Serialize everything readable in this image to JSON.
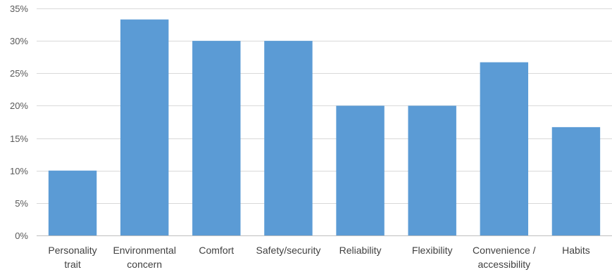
{
  "chart_data": {
    "type": "bar",
    "categories": [
      [
        "Personality",
        "trait"
      ],
      [
        "Environmental",
        "concern"
      ],
      [
        "Comfort"
      ],
      [
        "Safety/security"
      ],
      [
        "Reliability"
      ],
      [
        "Flexibility"
      ],
      [
        "Convenience /",
        "accessibility"
      ],
      [
        "Habits"
      ]
    ],
    "values": [
      10.0,
      33.3,
      30.0,
      30.0,
      20.0,
      20.0,
      26.7,
      16.7
    ],
    "ylim": [
      0,
      35
    ],
    "yticks": [
      0,
      5,
      10,
      15,
      20,
      25,
      30,
      35
    ],
    "ytick_labels": [
      "0%",
      "5%",
      "10%",
      "15%",
      "20%",
      "25%",
      "30%",
      "35%"
    ],
    "grid": true,
    "bar_color": "#5b9bd5"
  }
}
